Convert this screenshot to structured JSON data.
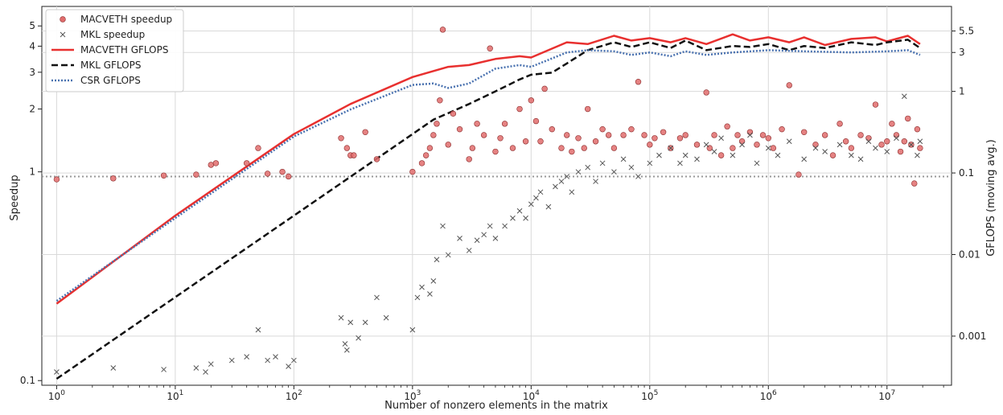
{
  "chart_data": {
    "type": "scatter",
    "xlabel": "Number of nonzero elements in the matrix",
    "ylabel": "Speedup",
    "y2label": "GFLOPS (moving avg.)",
    "xscale": "log",
    "yscale": "log",
    "y2scale": "log",
    "xlim": [
      0.75,
      35000000
    ],
    "ylim": [
      0.095,
      6.2
    ],
    "y2lim": [
      0.00025,
      11
    ],
    "grid": true,
    "legend_position": "top-left",
    "reference_line": {
      "y": 0.95,
      "style": "dotted",
      "color": "#999999"
    },
    "x_ticks": [
      {
        "value": 1,
        "base": "10",
        "exp": "0"
      },
      {
        "value": 10,
        "base": "10",
        "exp": "1"
      },
      {
        "value": 100,
        "base": "10",
        "exp": "2"
      },
      {
        "value": 1000,
        "base": "10",
        "exp": "3"
      },
      {
        "value": 10000,
        "base": "10",
        "exp": "4"
      },
      {
        "value": 100000,
        "base": "10",
        "exp": "5"
      },
      {
        "value": 1000000,
        "base": "10",
        "exp": "6"
      },
      {
        "value": 10000000,
        "base": "10",
        "exp": "7"
      }
    ],
    "y_ticks": [
      {
        "value": 0.1,
        "label": "0.1"
      },
      {
        "value": 1,
        "label": "1"
      },
      {
        "value": 2,
        "label": "2"
      },
      {
        "value": 3,
        "label": "3"
      },
      {
        "value": 4,
        "label": "4"
      },
      {
        "value": 5,
        "label": "5"
      }
    ],
    "y2_ticks": [
      {
        "value": 0.001,
        "label": "0.001"
      },
      {
        "value": 0.01,
        "label": "0.01"
      },
      {
        "value": 0.1,
        "label": "0.1"
      },
      {
        "value": 1,
        "label": "1"
      },
      {
        "value": 3,
        "label": "3"
      },
      {
        "value": 5.5,
        "label": "5.5"
      }
    ],
    "colors": {
      "macveth": "#e8302f",
      "macveth_fill": "#e06c6c",
      "mkl": "#111111",
      "csr": "#4a72b0",
      "mkl_marker": "#555555"
    },
    "series": [
      {
        "name": "MACVETH speedup",
        "kind": "scatter",
        "marker": "circle",
        "axis": "left",
        "points": [
          [
            1,
            0.92
          ],
          [
            3,
            0.93
          ],
          [
            8,
            0.96
          ],
          [
            15,
            0.97
          ],
          [
            20,
            1.08
          ],
          [
            22,
            1.1
          ],
          [
            40,
            1.1
          ],
          [
            50,
            1.3
          ],
          [
            60,
            0.98
          ],
          [
            80,
            1.0
          ],
          [
            90,
            0.95
          ],
          [
            250,
            1.45
          ],
          [
            280,
            1.3
          ],
          [
            300,
            1.2
          ],
          [
            320,
            1.2
          ],
          [
            400,
            1.55
          ],
          [
            500,
            1.15
          ],
          [
            1000,
            1.0
          ],
          [
            1200,
            1.1
          ],
          [
            1300,
            1.2
          ],
          [
            1400,
            1.3
          ],
          [
            1500,
            1.5
          ],
          [
            1600,
            1.7
          ],
          [
            1700,
            2.2
          ],
          [
            1800,
            4.8
          ],
          [
            2000,
            1.35
          ],
          [
            2200,
            1.9
          ],
          [
            2500,
            1.6
          ],
          [
            3000,
            1.15
          ],
          [
            3200,
            1.3
          ],
          [
            3500,
            1.7
          ],
          [
            4000,
            1.5
          ],
          [
            4500,
            3.9
          ],
          [
            5000,
            1.25
          ],
          [
            5500,
            1.45
          ],
          [
            6000,
            1.7
          ],
          [
            7000,
            1.3
          ],
          [
            8000,
            2.0
          ],
          [
            9000,
            1.4
          ],
          [
            10000,
            2.2
          ],
          [
            11000,
            1.75
          ],
          [
            12000,
            1.4
          ],
          [
            13000,
            2.5
          ],
          [
            15000,
            1.6
          ],
          [
            18000,
            1.3
          ],
          [
            20000,
            1.5
          ],
          [
            22000,
            1.25
          ],
          [
            25000,
            1.45
          ],
          [
            28000,
            1.3
          ],
          [
            30000,
            2.0
          ],
          [
            35000,
            1.4
          ],
          [
            40000,
            1.6
          ],
          [
            45000,
            1.5
          ],
          [
            50000,
            1.3
          ],
          [
            60000,
            1.5
          ],
          [
            70000,
            1.6
          ],
          [
            80000,
            2.7
          ],
          [
            90000,
            1.5
          ],
          [
            100000,
            1.35
          ],
          [
            110000,
            1.45
          ],
          [
            130000,
            1.55
          ],
          [
            150000,
            1.3
          ],
          [
            180000,
            1.45
          ],
          [
            200000,
            1.5
          ],
          [
            250000,
            1.35
          ],
          [
            300000,
            2.4
          ],
          [
            320000,
            1.3
          ],
          [
            350000,
            1.5
          ],
          [
            400000,
            1.2
          ],
          [
            450000,
            1.65
          ],
          [
            500000,
            1.3
          ],
          [
            550000,
            1.5
          ],
          [
            600000,
            1.4
          ],
          [
            700000,
            1.55
          ],
          [
            800000,
            1.35
          ],
          [
            900000,
            1.5
          ],
          [
            1000000,
            1.45
          ],
          [
            1100000,
            1.3
          ],
          [
            1300000,
            1.6
          ],
          [
            1500000,
            2.6
          ],
          [
            1800000,
            0.97
          ],
          [
            2000000,
            1.55
          ],
          [
            2500000,
            1.35
          ],
          [
            3000000,
            1.5
          ],
          [
            3500000,
            1.2
          ],
          [
            4000000,
            1.7
          ],
          [
            4500000,
            1.4
          ],
          [
            5000000,
            1.3
          ],
          [
            6000000,
            1.5
          ],
          [
            7000000,
            1.45
          ],
          [
            8000000,
            2.1
          ],
          [
            9000000,
            1.35
          ],
          [
            10000000,
            1.4
          ],
          [
            11000000,
            1.7
          ],
          [
            12000000,
            1.5
          ],
          [
            13000000,
            1.25
          ],
          [
            14000000,
            1.4
          ],
          [
            15000000,
            1.8
          ],
          [
            16000000,
            1.35
          ],
          [
            17000000,
            0.88
          ],
          [
            18000000,
            1.6
          ],
          [
            19000000,
            1.3
          ]
        ]
      },
      {
        "name": "MKL speedup",
        "kind": "scatter",
        "marker": "x",
        "axis": "left",
        "points": [
          [
            1,
            0.11
          ],
          [
            3,
            0.115
          ],
          [
            8,
            0.113
          ],
          [
            15,
            0.115
          ],
          [
            18,
            0.11
          ],
          [
            20,
            0.12
          ],
          [
            30,
            0.125
          ],
          [
            40,
            0.13
          ],
          [
            50,
            0.175
          ],
          [
            60,
            0.125
          ],
          [
            70,
            0.13
          ],
          [
            90,
            0.117
          ],
          [
            100,
            0.125
          ],
          [
            250,
            0.2
          ],
          [
            270,
            0.15
          ],
          [
            280,
            0.14
          ],
          [
            300,
            0.19
          ],
          [
            350,
            0.16
          ],
          [
            400,
            0.19
          ],
          [
            500,
            0.25
          ],
          [
            600,
            0.2
          ],
          [
            1000,
            0.175
          ],
          [
            1100,
            0.25
          ],
          [
            1200,
            0.28
          ],
          [
            1400,
            0.26
          ],
          [
            1500,
            0.3
          ],
          [
            1600,
            0.38
          ],
          [
            1800,
            0.55
          ],
          [
            2000,
            0.4
          ],
          [
            2500,
            0.48
          ],
          [
            3000,
            0.42
          ],
          [
            3500,
            0.47
          ],
          [
            4000,
            0.5
          ],
          [
            4500,
            0.55
          ],
          [
            5000,
            0.48
          ],
          [
            6000,
            0.55
          ],
          [
            7000,
            0.6
          ],
          [
            8000,
            0.65
          ],
          [
            9000,
            0.6
          ],
          [
            10000,
            0.7
          ],
          [
            11000,
            0.75
          ],
          [
            12000,
            0.8
          ],
          [
            14000,
            0.68
          ],
          [
            16000,
            0.85
          ],
          [
            18000,
            0.9
          ],
          [
            20000,
            0.95
          ],
          [
            22000,
            0.8
          ],
          [
            25000,
            1.0
          ],
          [
            30000,
            1.05
          ],
          [
            35000,
            0.9
          ],
          [
            40000,
            1.1
          ],
          [
            50000,
            1.0
          ],
          [
            60000,
            1.15
          ],
          [
            70000,
            1.05
          ],
          [
            80000,
            0.95
          ],
          [
            100000,
            1.1
          ],
          [
            120000,
            1.2
          ],
          [
            150000,
            1.3
          ],
          [
            180000,
            1.1
          ],
          [
            200000,
            1.2
          ],
          [
            250000,
            1.15
          ],
          [
            300000,
            1.35
          ],
          [
            350000,
            1.25
          ],
          [
            400000,
            1.45
          ],
          [
            500000,
            1.2
          ],
          [
            600000,
            1.35
          ],
          [
            700000,
            1.5
          ],
          [
            800000,
            1.1
          ],
          [
            1000000,
            1.3
          ],
          [
            1200000,
            1.2
          ],
          [
            1500000,
            1.4
          ],
          [
            2000000,
            1.15
          ],
          [
            2500000,
            1.3
          ],
          [
            3000000,
            1.25
          ],
          [
            4000000,
            1.35
          ],
          [
            5000000,
            1.2
          ],
          [
            6000000,
            1.15
          ],
          [
            7000000,
            1.4
          ],
          [
            8000000,
            1.3
          ],
          [
            10000000,
            1.25
          ],
          [
            12000000,
            1.45
          ],
          [
            14000000,
            2.3
          ],
          [
            16000000,
            1.35
          ],
          [
            18000000,
            1.2
          ],
          [
            19000000,
            1.4
          ]
        ]
      },
      {
        "name": "MACVETH GFLOPS",
        "kind": "line",
        "style": "solid",
        "axis": "right",
        "points": [
          [
            1,
            0.0025
          ],
          [
            10,
            0.03
          ],
          [
            100,
            0.3
          ],
          [
            300,
            0.7
          ],
          [
            1000,
            1.5
          ],
          [
            2000,
            2.0
          ],
          [
            3000,
            2.1
          ],
          [
            5000,
            2.5
          ],
          [
            8000,
            2.7
          ],
          [
            10000,
            2.6
          ],
          [
            20000,
            4.0
          ],
          [
            30000,
            3.8
          ],
          [
            50000,
            4.8
          ],
          [
            70000,
            4.2
          ],
          [
            100000,
            4.5
          ],
          [
            150000,
            4.0
          ],
          [
            200000,
            4.5
          ],
          [
            300000,
            3.8
          ],
          [
            500000,
            5.0
          ],
          [
            700000,
            4.2
          ],
          [
            1000000,
            4.6
          ],
          [
            1500000,
            4.0
          ],
          [
            2000000,
            4.6
          ],
          [
            3000000,
            3.7
          ],
          [
            5000000,
            4.4
          ],
          [
            8000000,
            4.6
          ],
          [
            10000000,
            4.1
          ],
          [
            15000000,
            4.8
          ],
          [
            19000000,
            3.8
          ]
        ]
      },
      {
        "name": "MKL GFLOPS",
        "kind": "line",
        "style": "dashed",
        "axis": "right",
        "points": [
          [
            1,
            0.0003
          ],
          [
            10,
            0.003
          ],
          [
            100,
            0.03
          ],
          [
            1000,
            0.3
          ],
          [
            1500,
            0.45
          ],
          [
            3000,
            0.7
          ],
          [
            5000,
            1.0
          ],
          [
            8000,
            1.4
          ],
          [
            10000,
            1.6
          ],
          [
            15000,
            1.7
          ],
          [
            20000,
            2.2
          ],
          [
            30000,
            3.2
          ],
          [
            50000,
            4.0
          ],
          [
            70000,
            3.5
          ],
          [
            100000,
            4.0
          ],
          [
            150000,
            3.4
          ],
          [
            200000,
            4.2
          ],
          [
            300000,
            3.2
          ],
          [
            500000,
            3.6
          ],
          [
            700000,
            3.5
          ],
          [
            1000000,
            3.8
          ],
          [
            1500000,
            3.2
          ],
          [
            2000000,
            3.6
          ],
          [
            3000000,
            3.4
          ],
          [
            5000000,
            4.0
          ],
          [
            8000000,
            3.7
          ],
          [
            10000000,
            4.0
          ],
          [
            15000000,
            4.3
          ],
          [
            19000000,
            3.4
          ]
        ]
      },
      {
        "name": "CSR GFLOPS",
        "kind": "line",
        "style": "dotted",
        "axis": "right",
        "points": [
          [
            1,
            0.0027
          ],
          [
            10,
            0.028
          ],
          [
            100,
            0.28
          ],
          [
            300,
            0.6
          ],
          [
            1000,
            1.2
          ],
          [
            1500,
            1.25
          ],
          [
            2000,
            1.1
          ],
          [
            3000,
            1.25
          ],
          [
            5000,
            1.9
          ],
          [
            8000,
            2.1
          ],
          [
            10000,
            2.0
          ],
          [
            20000,
            3.0
          ],
          [
            30000,
            3.2
          ],
          [
            50000,
            3.1
          ],
          [
            70000,
            2.8
          ],
          [
            100000,
            3.0
          ],
          [
            150000,
            2.7
          ],
          [
            200000,
            3.1
          ],
          [
            300000,
            2.8
          ],
          [
            500000,
            3.0
          ],
          [
            1000000,
            3.2
          ],
          [
            2000000,
            3.1
          ],
          [
            5000000,
            3.0
          ],
          [
            10000000,
            3.1
          ],
          [
            15000000,
            3.2
          ],
          [
            19000000,
            2.8
          ]
        ]
      }
    ]
  }
}
